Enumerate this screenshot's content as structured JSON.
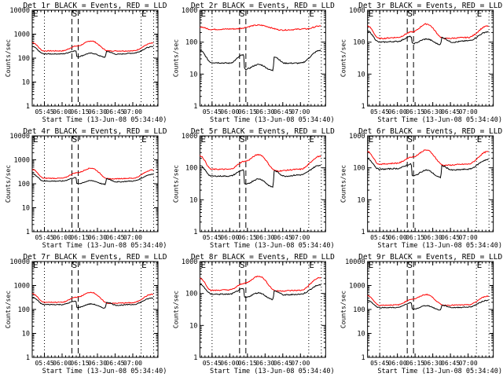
{
  "chart_data": [
    {
      "type": "line",
      "title": "Det 1r BLACK = Events, RED = LLD",
      "xlabel": "Start Time (13-Jun-08 05:34:40)",
      "ylabel": "Counts/sec",
      "yscale": "log",
      "ylim": [
        1,
        10000
      ],
      "ytick_labels": [
        "1",
        "10",
        "100",
        "1000",
        "10000"
      ],
      "xtick_labels": [
        "05:45",
        "06:00",
        "06:15",
        "06:30",
        "06:45",
        "07:00"
      ],
      "xlim_minutes": [
        0,
        106.7
      ],
      "markers": {
        "E_start": 10.3,
        "S_start": 33.3,
        "S_end": 38.7,
        "E_end": 92,
        "end": 102.7
      },
      "series": [
        {
          "name": "LLD",
          "color": "#ff0000",
          "anchors": [
            [
              0,
              450
            ],
            [
              10,
              200
            ],
            [
              25,
              200
            ],
            [
              38,
              320
            ],
            [
              50,
              520
            ],
            [
              65,
              200
            ],
            [
              85,
              200
            ],
            [
              102,
              420
            ]
          ]
        },
        {
          "name": "Events",
          "color": "#000000",
          "anchors": [
            [
              0,
              300
            ],
            [
              10,
              150
            ],
            [
              25,
              150
            ],
            [
              37,
              200
            ],
            [
              38,
              115
            ],
            [
              50,
              160
            ],
            [
              62,
              110
            ],
            [
              63,
              190
            ],
            [
              72,
              145
            ],
            [
              85,
              160
            ],
            [
              102,
              300
            ]
          ]
        }
      ]
    },
    {
      "type": "line",
      "title": "Det 2r BLACK = Events, RED = LLD",
      "xlabel": "Start Time (13-Jun-08 05:34:40)",
      "ylabel": "Counts/sec",
      "yscale": "log",
      "ylim": [
        1,
        1000
      ],
      "ytick_labels": [
        "1",
        "10",
        "100",
        "1000"
      ],
      "xtick_labels": [
        "05:45",
        "06:00",
        "06:15",
        "06:30",
        "06:45",
        "07:00"
      ],
      "xlim_minutes": [
        0,
        106.7
      ],
      "markers": {
        "E_start": 10.3,
        "S_start": 33.3,
        "S_end": 38.7,
        "E_end": 92,
        "end": 102.7
      },
      "series": [
        {
          "name": "LLD",
          "color": "#ff0000",
          "anchors": [
            [
              0,
              300
            ],
            [
              10,
              250
            ],
            [
              30,
              260
            ],
            [
              50,
              340
            ],
            [
              70,
              240
            ],
            [
              90,
              260
            ],
            [
              102,
              320
            ]
          ]
        },
        {
          "name": "Events",
          "color": "#000000",
          "anchors": [
            [
              0,
              55
            ],
            [
              10,
              23
            ],
            [
              25,
              22
            ],
            [
              37,
              40
            ],
            [
              38,
              14
            ],
            [
              50,
              20
            ],
            [
              62,
              13
            ],
            [
              63,
              35
            ],
            [
              72,
              22
            ],
            [
              85,
              22
            ],
            [
              102,
              55
            ]
          ]
        }
      ]
    },
    {
      "type": "line",
      "title": "Det 3r BLACK = Events, RED = LLD",
      "xlabel": "Start Time (13-Jun-08 05:34:40)",
      "ylabel": "Counts/sec",
      "yscale": "log",
      "ylim": [
        1,
        1000
      ],
      "ytick_labels": [
        "1",
        "10",
        "100",
        "1000"
      ],
      "xtick_labels": [
        "05:45",
        "06:00",
        "06:15",
        "06:30",
        "06:45",
        "07:00"
      ],
      "xlim_minutes": [
        0,
        106.7
      ],
      "markers": {
        "E_start": 10.3,
        "S_start": 33.3,
        "S_end": 38.7,
        "E_end": 92,
        "end": 102.7
      },
      "series": [
        {
          "name": "LLD",
          "color": "#ff0000",
          "anchors": [
            [
              0,
              320
            ],
            [
              10,
              130
            ],
            [
              25,
              140
            ],
            [
              38,
              210
            ],
            [
              50,
              370
            ],
            [
              65,
              130
            ],
            [
              85,
              140
            ],
            [
              102,
              320
            ]
          ]
        },
        {
          "name": "Events",
          "color": "#000000",
          "anchors": [
            [
              0,
              220
            ],
            [
              10,
              100
            ],
            [
              25,
              105
            ],
            [
              37,
              150
            ],
            [
              38,
              90
            ],
            [
              50,
              125
            ],
            [
              62,
              85
            ],
            [
              63,
              140
            ],
            [
              72,
              100
            ],
            [
              85,
              110
            ],
            [
              102,
              210
            ]
          ]
        }
      ]
    },
    {
      "type": "line",
      "title": "Det 4r BLACK = Events, RED = LLD",
      "xlabel": "Start Time (13-Jun-08 05:34:40)",
      "ylabel": "Counts/sec",
      "yscale": "log",
      "ylim": [
        1,
        10000
      ],
      "ytick_labels": [
        "1",
        "10",
        "100",
        "1000",
        "10000"
      ],
      "xtick_labels": [
        "05:45",
        "06:00",
        "06:15",
        "06:30",
        "06:45",
        "07:00"
      ],
      "xlim_minutes": [
        0,
        106.7
      ],
      "markers": {
        "E_start": 10.3,
        "S_start": 33.3,
        "S_end": 38.7,
        "E_end": 92,
        "end": 102.7
      },
      "series": [
        {
          "name": "LLD",
          "color": "#ff0000",
          "anchors": [
            [
              0,
              400
            ],
            [
              10,
              170
            ],
            [
              25,
              170
            ],
            [
              38,
              290
            ],
            [
              50,
              450
            ],
            [
              65,
              160
            ],
            [
              85,
              170
            ],
            [
              102,
              380
            ]
          ]
        },
        {
          "name": "Events",
          "color": "#000000",
          "anchors": [
            [
              0,
              260
            ],
            [
              10,
              130
            ],
            [
              25,
              130
            ],
            [
              37,
              180
            ],
            [
              38,
              100
            ],
            [
              50,
              135
            ],
            [
              62,
              95
            ],
            [
              63,
              160
            ],
            [
              72,
              120
            ],
            [
              85,
              130
            ],
            [
              102,
              250
            ]
          ]
        }
      ]
    },
    {
      "type": "line",
      "title": "Det 5r BLACK = Events, RED = LLD",
      "xlabel": "Start Time (13-Jun-08 05:34:40)",
      "ylabel": "Counts/sec",
      "yscale": "log",
      "ylim": [
        1,
        1000
      ],
      "ytick_labels": [
        "1",
        "10",
        "100",
        "1000"
      ],
      "xtick_labels": [
        "05:45",
        "06:00",
        "06:15",
        "06:30",
        "06:45",
        "07:00"
      ],
      "xlim_minutes": [
        0,
        106.7
      ],
      "markers": {
        "E_start": 10.3,
        "S_start": 33.3,
        "S_end": 38.7,
        "E_end": 92,
        "end": 102.7
      },
      "series": [
        {
          "name": "LLD",
          "color": "#ff0000",
          "anchors": [
            [
              0,
              240
            ],
            [
              10,
              90
            ],
            [
              25,
              90
            ],
            [
              38,
              160
            ],
            [
              50,
              260
            ],
            [
              65,
              80
            ],
            [
              85,
              90
            ],
            [
              102,
              230
            ]
          ]
        },
        {
          "name": "Events",
          "color": "#000000",
          "anchors": [
            [
              0,
              115
            ],
            [
              10,
              55
            ],
            [
              25,
              55
            ],
            [
              37,
              85
            ],
            [
              38,
              30
            ],
            [
              50,
              45
            ],
            [
              62,
              25
            ],
            [
              63,
              80
            ],
            [
              72,
              55
            ],
            [
              85,
              60
            ],
            [
              102,
              120
            ]
          ]
        }
      ]
    },
    {
      "type": "line",
      "title": "Det 6r BLACK = Events, RED = LLD",
      "xlabel": "Start Time (13-Jun-08 05:34:40)",
      "ylabel": "Counts/sec",
      "yscale": "log",
      "ylim": [
        1,
        1000
      ],
      "ytick_labels": [
        "1",
        "10",
        "100",
        "1000"
      ],
      "xtick_labels": [
        "05:45",
        "06:00",
        "06:15",
        "06:30",
        "06:45",
        "07:00"
      ],
      "xlim_minutes": [
        0,
        106.7
      ],
      "markers": {
        "E_start": 10.3,
        "S_start": 33.3,
        "S_end": 38.7,
        "E_end": 92,
        "end": 102.7
      },
      "series": [
        {
          "name": "LLD",
          "color": "#ff0000",
          "anchors": [
            [
              0,
              320
            ],
            [
              10,
              130
            ],
            [
              25,
              140
            ],
            [
              38,
              220
            ],
            [
              50,
              360
            ],
            [
              65,
              120
            ],
            [
              85,
              130
            ],
            [
              102,
              320
            ]
          ]
        },
        {
          "name": "Events",
          "color": "#000000",
          "anchors": [
            [
              0,
              190
            ],
            [
              10,
              90
            ],
            [
              25,
              95
            ],
            [
              37,
              130
            ],
            [
              38,
              55
            ],
            [
              50,
              85
            ],
            [
              62,
              50
            ],
            [
              63,
              115
            ],
            [
              72,
              85
            ],
            [
              85,
              90
            ],
            [
              102,
              180
            ]
          ]
        }
      ]
    },
    {
      "type": "line",
      "title": "Det 7r BLACK = Events, RED = LLD",
      "xlabel": "Start Time (13-Jun-08 05:34:40)",
      "ylabel": "Counts/sec",
      "yscale": "log",
      "ylim": [
        1,
        10000
      ],
      "ytick_labels": [
        "1",
        "10",
        "100",
        "1000",
        "10000"
      ],
      "xtick_labels": [
        "05:45",
        "06:00",
        "06:15",
        "06:30",
        "06:45",
        "07:00"
      ],
      "xlim_minutes": [
        0,
        106.7
      ],
      "markers": {
        "E_start": 10.3,
        "S_start": 33.3,
        "S_end": 38.7,
        "E_end": 92,
        "end": 102.7
      },
      "series": [
        {
          "name": "LLD",
          "color": "#ff0000",
          "anchors": [
            [
              0,
              460
            ],
            [
              10,
              200
            ],
            [
              25,
              200
            ],
            [
              38,
              330
            ],
            [
              50,
              520
            ],
            [
              65,
              180
            ],
            [
              85,
              190
            ],
            [
              102,
              430
            ]
          ]
        },
        {
          "name": "Events",
          "color": "#000000",
          "anchors": [
            [
              0,
              320
            ],
            [
              10,
              160
            ],
            [
              25,
              160
            ],
            [
              37,
              220
            ],
            [
              38,
              120
            ],
            [
              50,
              170
            ],
            [
              62,
              115
            ],
            [
              63,
              200
            ],
            [
              72,
              150
            ],
            [
              85,
              160
            ],
            [
              102,
              300
            ]
          ]
        }
      ]
    },
    {
      "type": "line",
      "title": "Det 8r BLACK = Events, RED = LLD",
      "xlabel": "Start Time (13-Jun-08 05:34:40)",
      "ylabel": "Counts/sec",
      "yscale": "log",
      "ylim": [
        1,
        1000
      ],
      "ytick_labels": [
        "1",
        "10",
        "100",
        "1000"
      ],
      "xtick_labels": [
        "05:45",
        "06:00",
        "06:15",
        "06:30",
        "06:45",
        "07:00"
      ],
      "xlim_minutes": [
        0,
        106.7
      ],
      "markers": {
        "E_start": 10.3,
        "S_start": 33.3,
        "S_end": 38.7,
        "E_end": 92,
        "end": 102.7
      },
      "series": [
        {
          "name": "LLD",
          "color": "#ff0000",
          "anchors": [
            [
              0,
              300
            ],
            [
              10,
              125
            ],
            [
              25,
              130
            ],
            [
              38,
              210
            ],
            [
              50,
              350
            ],
            [
              65,
              120
            ],
            [
              85,
              125
            ],
            [
              102,
              310
            ]
          ]
        },
        {
          "name": "Events",
          "color": "#000000",
          "anchors": [
            [
              0,
              190
            ],
            [
              10,
              95
            ],
            [
              25,
              95
            ],
            [
              37,
              140
            ],
            [
              38,
              75
            ],
            [
              50,
              105
            ],
            [
              62,
              65
            ],
            [
              63,
              120
            ],
            [
              72,
              90
            ],
            [
              85,
              95
            ],
            [
              102,
              185
            ]
          ]
        }
      ]
    },
    {
      "type": "line",
      "title": "Det 9r BLACK = Events, RED = LLD",
      "xlabel": "Start Time (13-Jun-08 05:34:40)",
      "ylabel": "Counts/sec",
      "yscale": "log",
      "ylim": [
        1,
        10000
      ],
      "ytick_labels": [
        "1",
        "10",
        "100",
        "1000",
        "10000"
      ],
      "xtick_labels": [
        "05:45",
        "06:00",
        "06:15",
        "06:30",
        "06:45",
        "07:00"
      ],
      "xlim_minutes": [
        0,
        106.7
      ],
      "markers": {
        "E_start": 10.3,
        "S_start": 33.3,
        "S_end": 38.7,
        "E_end": 92,
        "end": 102.7
      },
      "series": [
        {
          "name": "LLD",
          "color": "#ff0000",
          "anchors": [
            [
              0,
              380
            ],
            [
              10,
              150
            ],
            [
              25,
              155
            ],
            [
              38,
              270
            ],
            [
              50,
              420
            ],
            [
              65,
              150
            ],
            [
              85,
              155
            ],
            [
              102,
              360
            ]
          ]
        },
        {
          "name": "Events",
          "color": "#000000",
          "anchors": [
            [
              0,
              240
            ],
            [
              10,
              120
            ],
            [
              25,
              120
            ],
            [
              37,
              190
            ],
            [
              38,
              100
            ],
            [
              50,
              145
            ],
            [
              62,
              95
            ],
            [
              63,
              150
            ],
            [
              72,
              120
            ],
            [
              85,
              125
            ],
            [
              102,
              240
            ]
          ]
        }
      ]
    }
  ],
  "markers_text": {
    "E": "E",
    "S": "S"
  }
}
